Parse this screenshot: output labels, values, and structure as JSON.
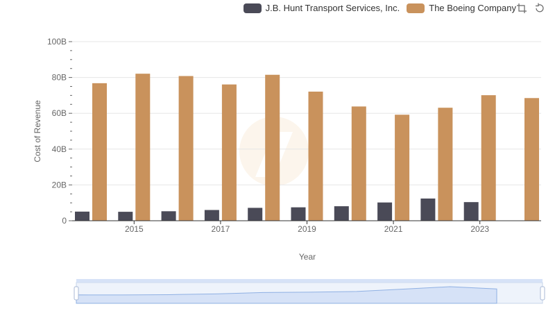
{
  "legend": {
    "series_a": "J.B. Hunt Transport Services, Inc.",
    "series_b": "The Boeing Company"
  },
  "toolbox": {
    "zoom_icon": "zoom-icon",
    "reset_icon": "restore-icon"
  },
  "colors": {
    "series_a": "#4a4a57",
    "series_b": "#c9925c",
    "axis": "#333333",
    "tick_text": "#666666",
    "grid": "#e6e6e6",
    "slider_fill": "#d6e2f7",
    "slider_line": "#8fb0e3"
  },
  "chart_data": {
    "type": "bar",
    "title": "",
    "xlabel": "Year",
    "ylabel": "Cost of Revenue",
    "ylim": [
      0,
      100000000000
    ],
    "yticks": [
      0,
      20000000000,
      40000000000,
      60000000000,
      80000000000,
      100000000000
    ],
    "ytick_labels": [
      "0",
      "20B",
      "40B",
      "60B",
      "80B",
      "100B"
    ],
    "categories": [
      "2014",
      "2015",
      "2016",
      "2017",
      "2018",
      "2019",
      "2020",
      "2021",
      "2022",
      "2023",
      "2024"
    ],
    "xtick_labels": [
      "",
      "2015",
      "",
      "2017",
      "",
      "2019",
      "",
      "2021",
      "",
      "2023",
      ""
    ],
    "series": [
      {
        "name": "J.B. Hunt Transport Services, Inc.",
        "values": [
          5100000000,
          5000000000,
          5300000000,
          6000000000,
          7200000000,
          7500000000,
          8100000000,
          10200000000,
          12400000000,
          10400000000,
          null
        ]
      },
      {
        "name": "The Boeing Company",
        "values": [
          76800000000,
          82100000000,
          80800000000,
          76100000000,
          81500000000,
          72100000000,
          63800000000,
          59200000000,
          63100000000,
          70100000000,
          68500000000
        ]
      }
    ],
    "grid": "horizontal",
    "legend_position": "top-right"
  },
  "zoom_slider": {
    "start_percent": 0,
    "end_percent": 100
  }
}
